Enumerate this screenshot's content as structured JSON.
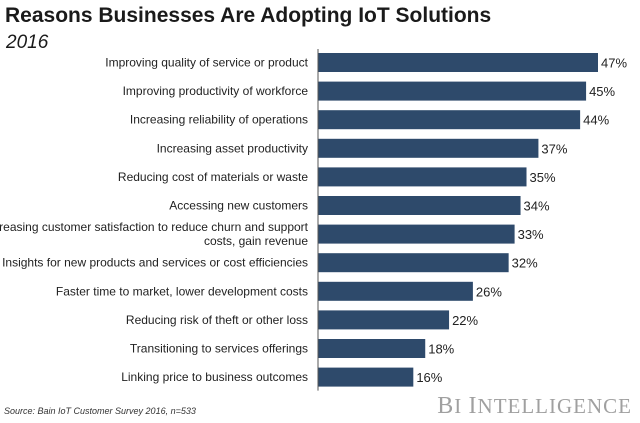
{
  "title": "Reasons Businesses Are Adopting IoT Solutions",
  "subtitle": "2016",
  "source": "Source: Bain IoT Customer Survey 2016, n=533",
  "brand": "BI INTELLIGENCE",
  "bar_color": "#2e4a6b",
  "chart_data": {
    "type": "bar",
    "orientation": "horizontal",
    "categories": [
      "Improving quality of service or product",
      "Improving productivity of workforce",
      "Increasing reliability of operations",
      "Increasing asset productivity",
      "Reducing cost of materials or waste",
      "Accessing new customers",
      "Increasing customer satisfaction to reduce churn and support costs, gain revenue",
      "Insights for new products and services or cost efficiencies",
      "Faster time to market, lower development costs",
      "Reducing risk of theft or other loss",
      "Transitioning to services offerings",
      "Linking price to business outcomes"
    ],
    "category_lines": [
      [
        "Improving quality of service or product"
      ],
      [
        "Improving productivity of workforce"
      ],
      [
        "Increasing reliability of operations"
      ],
      [
        "Increasing asset productivity"
      ],
      [
        "Reducing cost of materials or waste"
      ],
      [
        "Accessing new customers"
      ],
      [
        "Increasing customer satisfaction to reduce churn and support",
        "costs, gain revenue"
      ],
      [
        "Insights for new products and services or cost efficiencies"
      ],
      [
        "Faster time to market, lower development costs"
      ],
      [
        "Reducing risk of theft or other loss"
      ],
      [
        "Transitioning to services offerings"
      ],
      [
        "Linking price to business outcomes"
      ]
    ],
    "values": [
      47,
      45,
      44,
      37,
      35,
      34,
      33,
      32,
      26,
      22,
      18,
      16
    ],
    "value_labels": [
      "47%",
      "45%",
      "44%",
      "37%",
      "35%",
      "34%",
      "33%",
      "32%",
      "26%",
      "22%",
      "18%",
      "16%"
    ],
    "title": "Reasons Businesses Are Adopting IoT Solutions",
    "subtitle": "2016",
    "xlabel": "",
    "ylabel": "",
    "xlim": [
      0,
      47
    ],
    "grid": false,
    "legend": false
  }
}
